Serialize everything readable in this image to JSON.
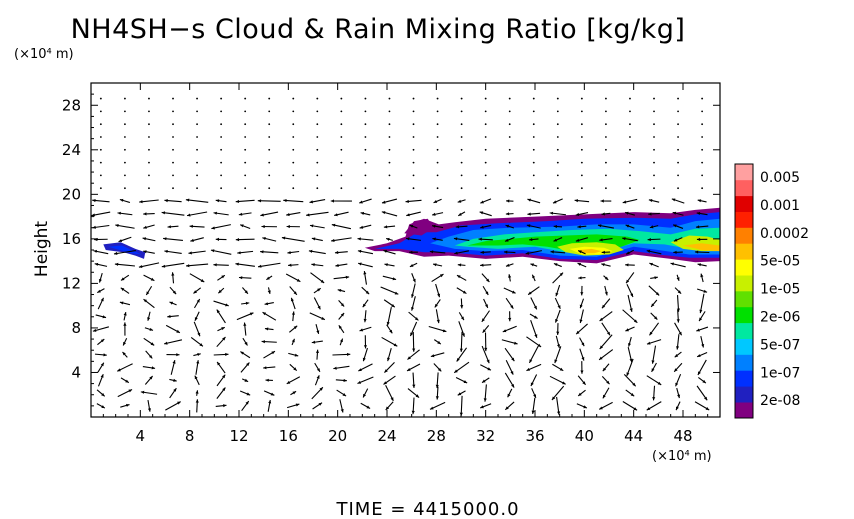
{
  "title": "NH4SH−s Cloud & Rain Mixing Ratio [kg/kg]",
  "y_unit": "(×10⁴ m)",
  "x_unit": "(×10⁴ m)",
  "time_label": "TIME  =  4415000.0",
  "chart_data": {
    "type": "heatmap",
    "title": "NH4SH−s Cloud & Rain Mixing Ratio [kg/kg]",
    "xlabel": "",
    "ylabel": "Height",
    "xlim": [
      0,
      51
    ],
    "ylim": [
      0,
      30
    ],
    "x_ticks": [
      4,
      8,
      12,
      16,
      20,
      24,
      28,
      32,
      36,
      40,
      44,
      48
    ],
    "y_ticks": [
      4,
      8,
      12,
      16,
      20,
      24,
      28
    ],
    "colorbar": {
      "labels": [
        "0.005",
        "0.001",
        "0.0002",
        "5e-05",
        "1e-05",
        "2e-06",
        "5e-07",
        "1e-07",
        "2e-08"
      ],
      "colors": [
        "#800080",
        "#2020c0",
        "#0030ff",
        "#0080ff",
        "#00c8ff",
        "#00e8a0",
        "#00e000",
        "#60e000",
        "#c8f000",
        "#ffff00",
        "#ffc000",
        "#ff8000",
        "#ff2000",
        "#e00000",
        "#ff6060",
        "#ffa0a0"
      ]
    },
    "cloud_regions": [
      {
        "x": [
          1.0,
          4.5
        ],
        "z": [
          14.3,
          15.6
        ],
        "level": "1e-07 to 2e-08"
      },
      {
        "x": [
          23,
          51
        ],
        "z": [
          13.8,
          18.5
        ],
        "level": "2e-08 to 5e-05"
      },
      {
        "x": [
          37,
          44
        ],
        "z": [
          14.0,
          15.5
        ],
        "level": "5e-05 to 0.0002"
      }
    ],
    "vectors": "wind field arrows (u, w) across the domain"
  },
  "colors": {
    "background": "#ffffff",
    "axis": "#000000"
  }
}
